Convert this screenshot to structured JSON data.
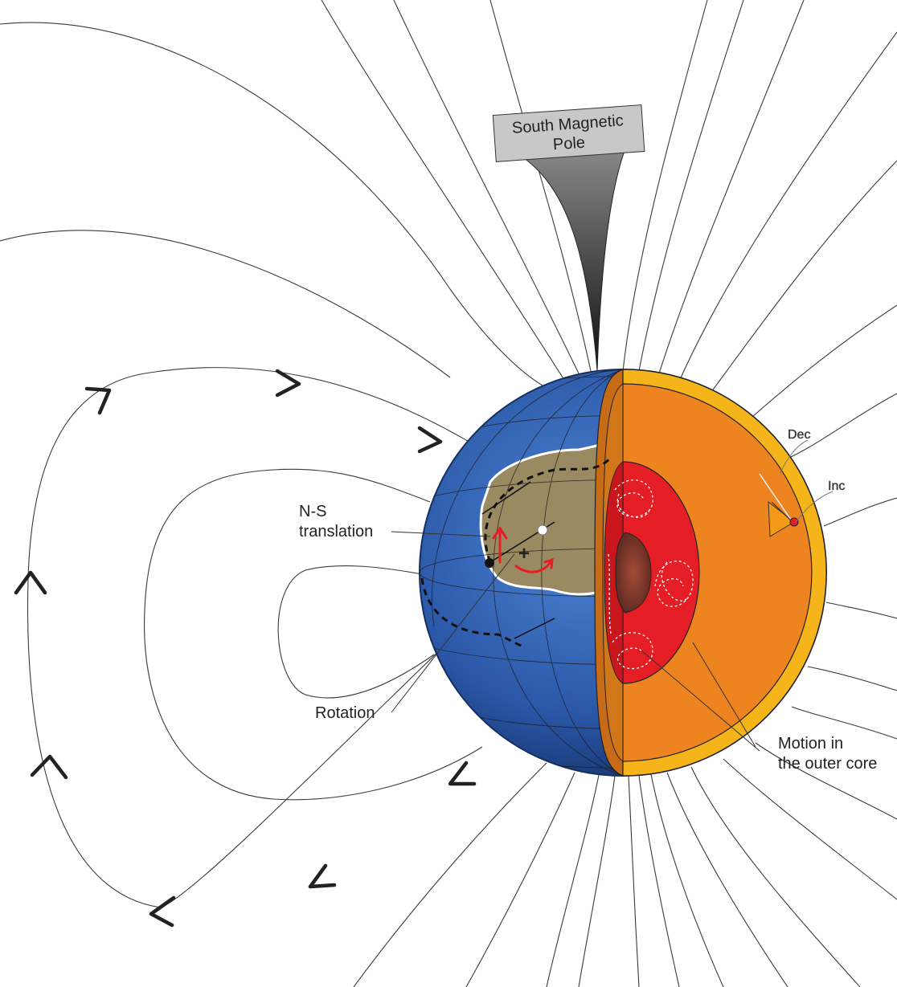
{
  "labels": {
    "pole_line1": "South Magnetic",
    "pole_line2": "Pole",
    "ns_line1": "N-S",
    "ns_line2": "translation",
    "rotation": "Rotation",
    "motion_line1": "Motion in",
    "motion_line2": "the outer core",
    "dec": "Dec",
    "inc": "Inc",
    "plus": "+"
  },
  "colors": {
    "ocean": "#2f5fb0",
    "land": "#9a8a62",
    "crust_mantle": "#ee8420",
    "mantle_inner_face": "#c86b17",
    "outer_ring": "#f4b41a",
    "outer_core": "#e51e25",
    "inner_core": "#8c3a2a",
    "field_line": "#3a3a3a",
    "pole_box": "#c8c8c8",
    "arrow_red": "#e51e25"
  }
}
